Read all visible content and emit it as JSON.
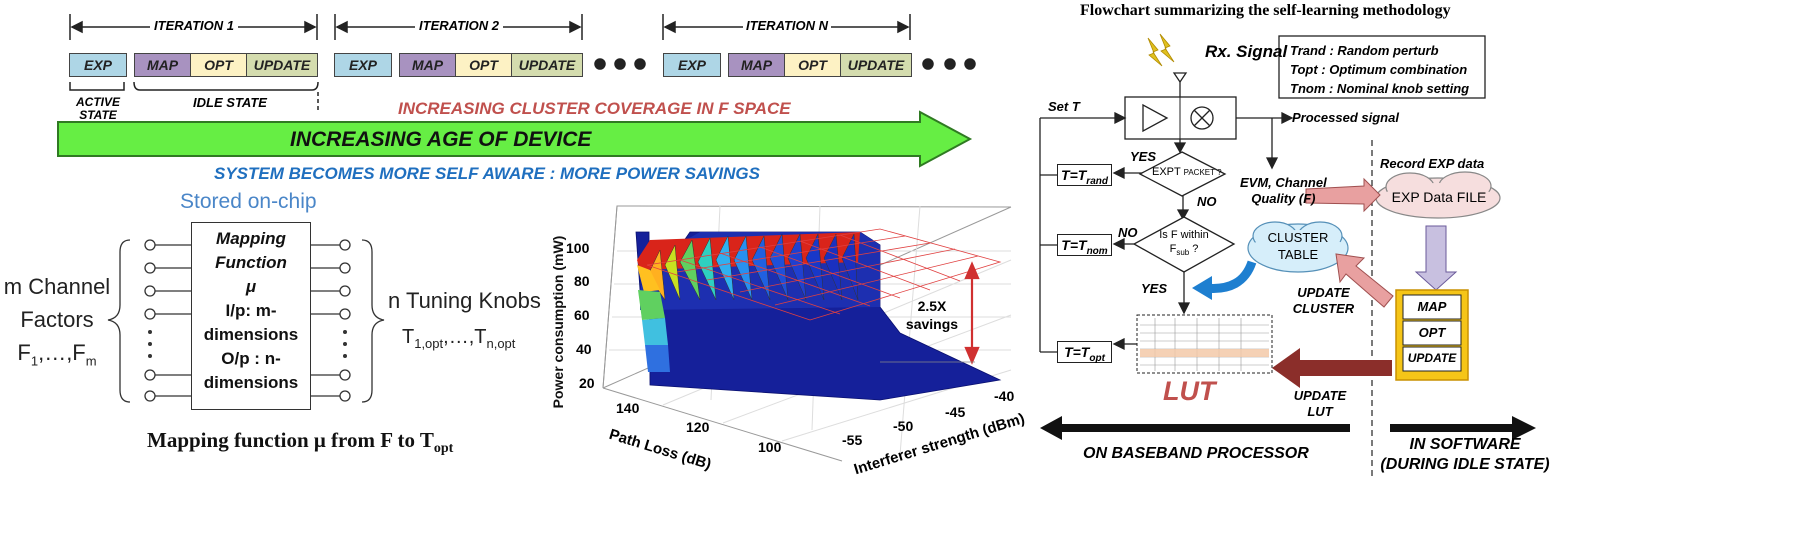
{
  "timeline": {
    "iterations": [
      {
        "label": "ITERATION 1"
      },
      {
        "label": "ITERATION 2"
      },
      {
        "label": "ITERATION N"
      }
    ],
    "blocks": [
      "EXP",
      "MAP",
      "OPT",
      "UPDATE"
    ],
    "block_colors": {
      "EXP": "#aed6e6",
      "MAP": "#a892c0",
      "OPT": "#fdf2c4",
      "UPDATE": "#d4dcae"
    },
    "active_state": "ACTIVE STATE",
    "idle_state": "IDLE STATE",
    "cluster_coverage": "INCREASING CLUSTER COVERAGE IN F SPACE",
    "age_arrow": "INCREASING AGE OF DEVICE",
    "self_aware": "SYSTEM BECOMES MORE SELF AWARE : MORE POWER SAVINGS",
    "colors": {
      "cluster": "#c0504d",
      "arrow": "#66ee44",
      "self_aware": "#1f6fbf"
    }
  },
  "mapping": {
    "stored": "Stored on-chip",
    "box_lines": [
      "Mapping",
      "Function",
      "μ",
      "I/p: m-",
      "dimensions",
      "O/p : n-",
      "dimensions"
    ],
    "left_lines": [
      "m  Channel",
      "Factors",
      "F",
      "1",
      ",…,F",
      "m"
    ],
    "right_title": "n Tuning Knobs",
    "right_sub": [
      "T",
      "1,opt",
      ",…,T",
      "n,opt"
    ],
    "caption_main": "Mapping function μ from F to T",
    "caption_sub": "opt"
  },
  "surface": {
    "ylabel": "Power consumption (mW)",
    "zticks": [
      "100",
      "80",
      "60",
      "40",
      "20"
    ],
    "pl_label": "Path Loss (dB)",
    "pl_ticks": [
      "140",
      "120",
      "100"
    ],
    "int_label": "Interferer strength (dBm)",
    "int_ticks": [
      "-55",
      "-50",
      "-45",
      "-40"
    ],
    "savings": [
      "2.5X",
      "savings"
    ]
  },
  "flowchart": {
    "title": "Flowchart summarizing the self-learning methodology",
    "rx": "Rx. Signal",
    "legend": [
      "Trand : Random perturb",
      "Topt : Optimum combination",
      "Tnom : Nominal knob setting"
    ],
    "set_t": "Set T",
    "processed": "Processed signal",
    "yes1": "YES",
    "no1": "NO",
    "expt_main": "EXPT",
    "expt_sub": "PACKET ?",
    "evm": [
      "EVM, Channel",
      "Quality (F)"
    ],
    "t_rand": "T=T",
    "t_rand_sub": "rand",
    "t_nom": "T=T",
    "t_nom_sub": "nom",
    "t_opt": "T=T",
    "t_opt_sub": "opt",
    "no2": "NO",
    "within": [
      "Is F within",
      "F",
      "sub",
      " ?"
    ],
    "yes2": "YES",
    "record": "Record EXP data",
    "exp_file": "EXP Data FILE",
    "cluster_table": [
      "CLUSTER",
      "TABLE"
    ],
    "update_cluster": [
      "UPDATE",
      "CLUSTER"
    ],
    "sw_blocks": [
      "MAP",
      "OPT",
      "UPDATE"
    ],
    "update_lut": [
      "UPDATE",
      "LUT"
    ],
    "lut": "LUT",
    "baseband": "ON BASEBAND PROCESSOR",
    "software": [
      "IN SOFTWARE",
      "(DURING IDLE STATE)"
    ],
    "colors": {
      "lut": "#c0504d",
      "sw_border": "#e0a800",
      "pink_arrow": "#e8a0a0",
      "dark_arrow": "#8b2e2a",
      "lilac_arrow": "#c8c0e0"
    }
  }
}
